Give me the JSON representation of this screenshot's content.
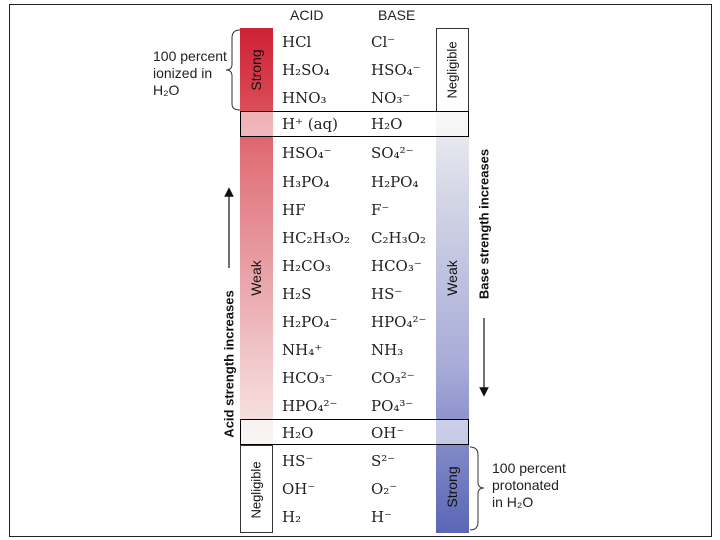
{
  "headers": {
    "acid": "ACID",
    "base": "BASE"
  },
  "left_note": {
    "lines": [
      "100 percent",
      "ionized in",
      "H₂O"
    ]
  },
  "right_note": {
    "lines": [
      "100 percent",
      "protonated",
      "in H₂O"
    ]
  },
  "acid_labels": {
    "strong": "Strong",
    "weak": "Weak",
    "negligible": "Negligible"
  },
  "base_labels": {
    "negligible": "Negligible",
    "weak": "Weak",
    "strong": "Strong"
  },
  "left_axis": "Acid strength increases",
  "right_axis": "Base strength increases",
  "rows": [
    {
      "acid": "HCl",
      "base": "Cl⁻"
    },
    {
      "acid": "H₂SO₄",
      "base": "HSO₄⁻"
    },
    {
      "acid": "HNO₃",
      "base": "NO₃⁻"
    },
    {
      "acid": "H⁺ (aq)",
      "base": "H₂O"
    },
    {
      "acid": "HSO₄⁻",
      "base": "SO₄²⁻"
    },
    {
      "acid": "H₃PO₄",
      "base": "H₂PO₄"
    },
    {
      "acid": "HF",
      "base": "F⁻"
    },
    {
      "acid": "HC₂H₃O₂",
      "base": "C₂H₃O₂"
    },
    {
      "acid": "H₂CO₃",
      "base": "HCO₃⁻"
    },
    {
      "acid": "H₂S",
      "base": "HS⁻"
    },
    {
      "acid": "H₂PO₄⁻",
      "base": "HPO₄²⁻"
    },
    {
      "acid": "NH₄⁺",
      "base": "NH₃"
    },
    {
      "acid": "HCO₃⁻",
      "base": "CO₃²⁻"
    },
    {
      "acid": "HPO₄²⁻",
      "base": "PO₄³⁻"
    },
    {
      "acid": "H₂O",
      "base": "OH⁻"
    },
    {
      "acid": "HS⁻",
      "base": "S²⁻"
    },
    {
      "acid": "OH⁻",
      "base": "O₂⁻"
    },
    {
      "acid": "H₂",
      "base": "H⁻"
    }
  ]
}
